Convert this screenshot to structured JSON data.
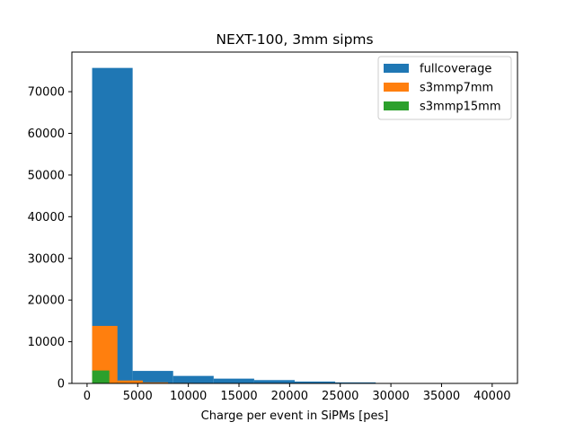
{
  "chart_data": {
    "type": "bar",
    "title": "NEXT-100, 3mm sipms",
    "xlabel": "Charge per event in SiPMs [pes]",
    "ylabel": "",
    "xlim": [
      -1500,
      42500
    ],
    "ylim": [
      0,
      79500
    ],
    "xticks": [
      0,
      5000,
      10000,
      15000,
      20000,
      25000,
      30000,
      35000,
      40000
    ],
    "yticks": [
      0,
      10000,
      20000,
      30000,
      40000,
      50000,
      60000,
      70000
    ],
    "legend_position": "top-right",
    "series": [
      {
        "name": "fullcoverage",
        "color": "#1f77b4",
        "bins": [
          {
            "x0": 500,
            "x1": 4500,
            "value": 75700
          },
          {
            "x0": 4500,
            "x1": 8500,
            "value": 3000
          },
          {
            "x0": 8500,
            "x1": 12500,
            "value": 1800
          },
          {
            "x0": 12500,
            "x1": 16500,
            "value": 1150
          },
          {
            "x0": 16500,
            "x1": 20500,
            "value": 800
          },
          {
            "x0": 20500,
            "x1": 24500,
            "value": 450
          },
          {
            "x0": 24500,
            "x1": 28500,
            "value": 250
          },
          {
            "x0": 28500,
            "x1": 32500,
            "value": 60
          },
          {
            "x0": 32500,
            "x1": 36500,
            "value": 25
          },
          {
            "x0": 36500,
            "x1": 40500,
            "value": 10
          }
        ]
      },
      {
        "name": "s3mmp7mm",
        "color": "#ff7f0e",
        "bins": [
          {
            "x0": 500,
            "x1": 3000,
            "value": 13800
          },
          {
            "x0": 3000,
            "x1": 5500,
            "value": 700
          },
          {
            "x0": 5500,
            "x1": 8000,
            "value": 250
          },
          {
            "x0": 8000,
            "x1": 10500,
            "value": 120
          },
          {
            "x0": 10500,
            "x1": 13000,
            "value": 40
          },
          {
            "x0": 13000,
            "x1": 15500,
            "value": 15
          }
        ]
      },
      {
        "name": "s3mmp15mm",
        "color": "#2ca02c",
        "bins": [
          {
            "x0": 500,
            "x1": 2200,
            "value": 3100
          },
          {
            "x0": 2200,
            "x1": 3900,
            "value": 120
          },
          {
            "x0": 3900,
            "x1": 5600,
            "value": 30
          }
        ]
      }
    ]
  }
}
